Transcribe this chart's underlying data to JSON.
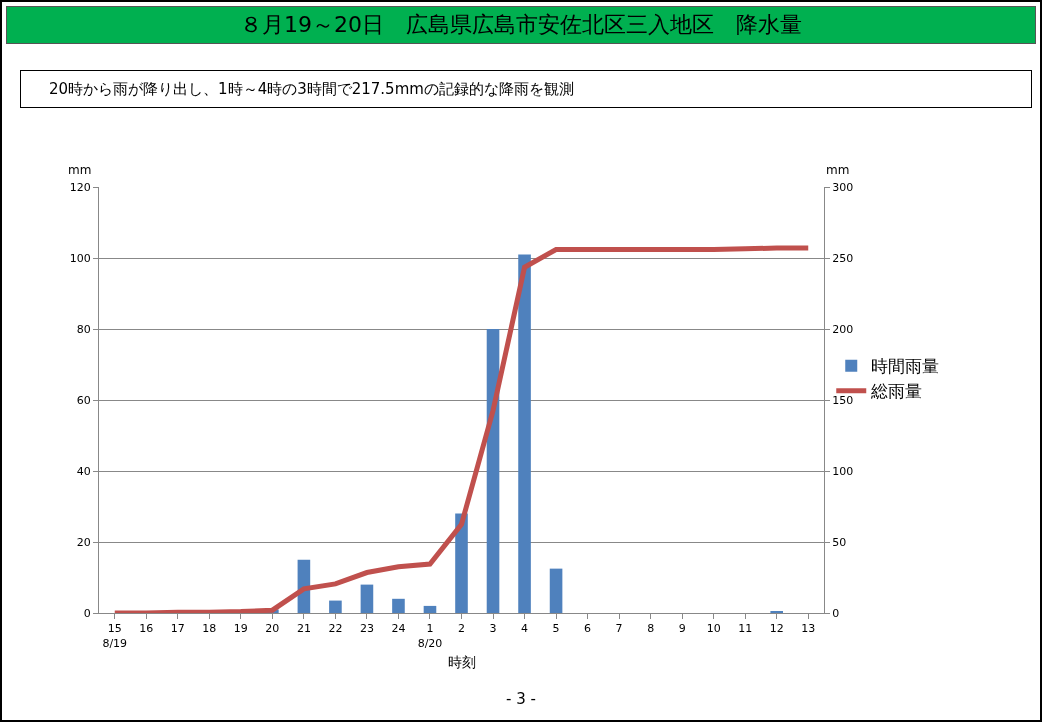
{
  "chart_data": {
    "type": "bar",
    "title": "８月19～20日　広島県広島市安佐北区三入地区　降水量",
    "subtitle": "20時から雨が降り出し、1時～4時の3時間で217.5mmの記録的な降雨を観測",
    "xlabel": "時刻",
    "ylabel": "mm",
    "y2label": "mm",
    "categories": [
      "15\n8/19",
      "16",
      "17",
      "18",
      "19",
      "20",
      "21",
      "22",
      "23",
      "24",
      "1\n8/20",
      "2",
      "3",
      "4",
      "5",
      "6",
      "7",
      "8",
      "9",
      "10",
      "11",
      "12",
      "13"
    ],
    "series": [
      {
        "name": "時間雨量",
        "color": "#4f81bd",
        "values": [
          0,
          0,
          0,
          0,
          0,
          1,
          15,
          3.5,
          8,
          4,
          2,
          28,
          80,
          101,
          12.5,
          0,
          0,
          0,
          0,
          0,
          0,
          0.5,
          0
        ]
      },
      {
        "name": "総雨量",
        "type": "line",
        "axis": "y2",
        "color": "#c0504d",
        "values": [
          0,
          0,
          0.5,
          0.5,
          1,
          2,
          17,
          20.5,
          28.5,
          32.5,
          34.5,
          62.5,
          142.5,
          243.5,
          256,
          256,
          256,
          256,
          256,
          256,
          256.5,
          257,
          257
        ]
      }
    ],
    "ylim": [
      0,
      120
    ],
    "yticks": [
      0,
      20,
      40,
      60,
      80,
      100,
      120
    ],
    "y2lim": [
      0,
      300
    ],
    "y2ticks": [
      0,
      50,
      100,
      150,
      200,
      250,
      300
    ],
    "grid": "y",
    "legend": "right",
    "marker": "none",
    "line_style": "solid",
    "annotations": [
      "- 3 -"
    ]
  }
}
